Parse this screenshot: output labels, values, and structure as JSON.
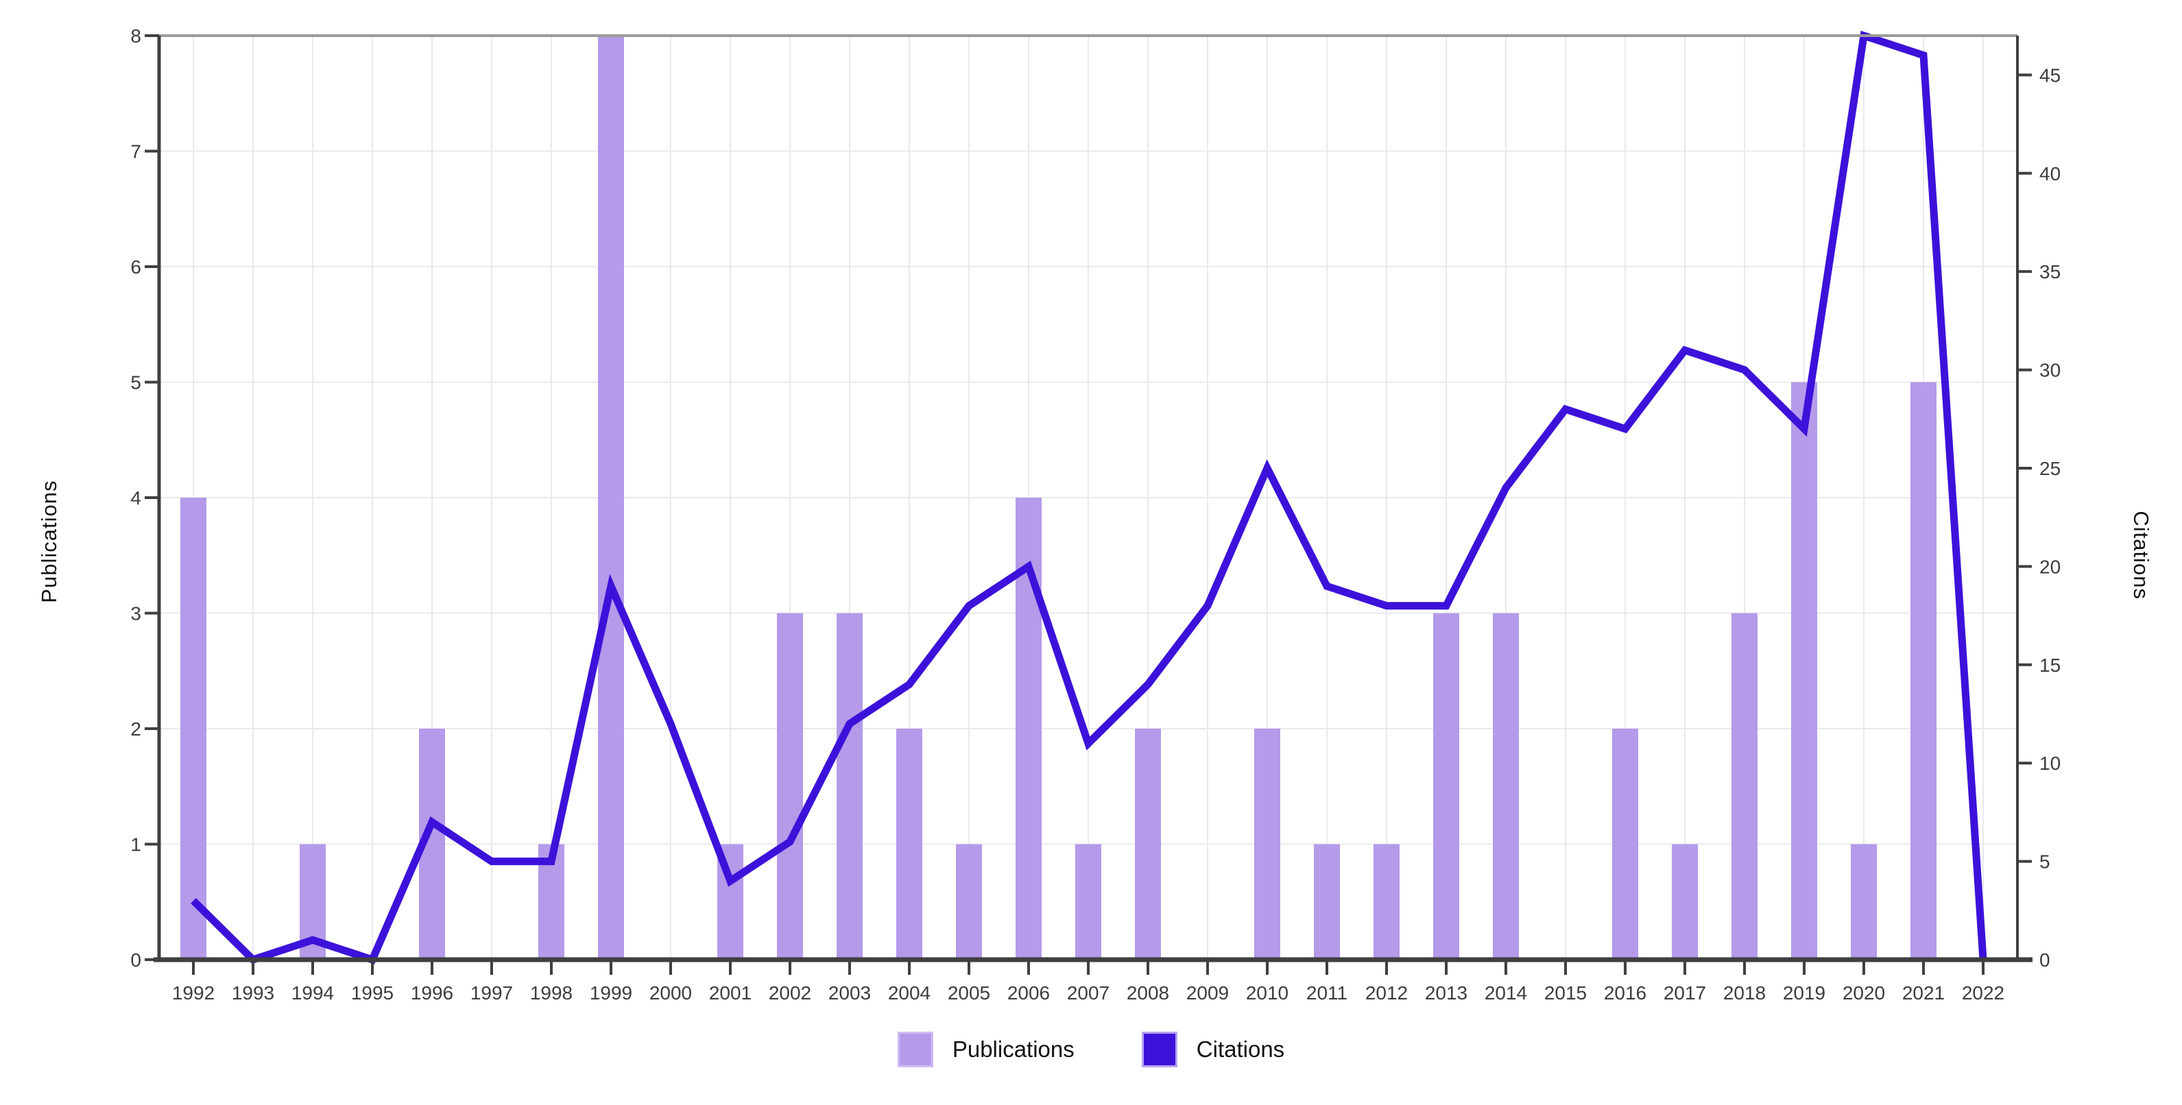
{
  "chart_data": {
    "type": "bar+line",
    "categories": [
      1992,
      1993,
      1994,
      1995,
      1996,
      1997,
      1998,
      1999,
      2000,
      2001,
      2002,
      2003,
      2004,
      2005,
      2006,
      2007,
      2008,
      2009,
      2010,
      2011,
      2012,
      2013,
      2014,
      2015,
      2016,
      2017,
      2018,
      2019,
      2020,
      2021,
      2022
    ],
    "series": [
      {
        "name": "Publications",
        "type": "bar",
        "axis": "left",
        "values": [
          4,
          0,
          1,
          0,
          2,
          0,
          1,
          8,
          0,
          1,
          3,
          3,
          2,
          1,
          4,
          1,
          2,
          0,
          2,
          1,
          1,
          3,
          3,
          0,
          2,
          1,
          3,
          5,
          1,
          5,
          0
        ]
      },
      {
        "name": "Citations",
        "type": "line",
        "axis": "right",
        "values": [
          3,
          0,
          1,
          0,
          7,
          5,
          5,
          19,
          12,
          4,
          6,
          12,
          14,
          18,
          20,
          11,
          14,
          18,
          25,
          19,
          18,
          18,
          24,
          28,
          27,
          31,
          30,
          27,
          47,
          46,
          0
        ]
      }
    ],
    "title": "",
    "xlabel": "",
    "ylabel_left": "Publications",
    "ylabel_right": "Citations",
    "y_left": {
      "min": 0,
      "max": 8,
      "ticks": [
        0,
        1,
        2,
        3,
        4,
        5,
        6,
        7,
        8
      ]
    },
    "y_right": {
      "min": 0,
      "max": 47,
      "ticks": [
        0,
        5,
        10,
        15,
        20,
        25,
        30,
        35,
        40,
        45
      ]
    },
    "grid": true,
    "legend_position": "bottom"
  },
  "legend": {
    "publications": "Publications",
    "citations": "Citations"
  },
  "colors": {
    "bar_fill": "#b49ae9",
    "bar_legend_border": "#cdbcf3",
    "line": "#3c12da",
    "line_legend_border": "#b7a4ef",
    "gridline": "#e9e8ef",
    "axis_dark": "#3f3f3f",
    "axis_top": "#9b9b9b",
    "tick_label": "#3d3d3d",
    "axis_title": "#111111"
  }
}
